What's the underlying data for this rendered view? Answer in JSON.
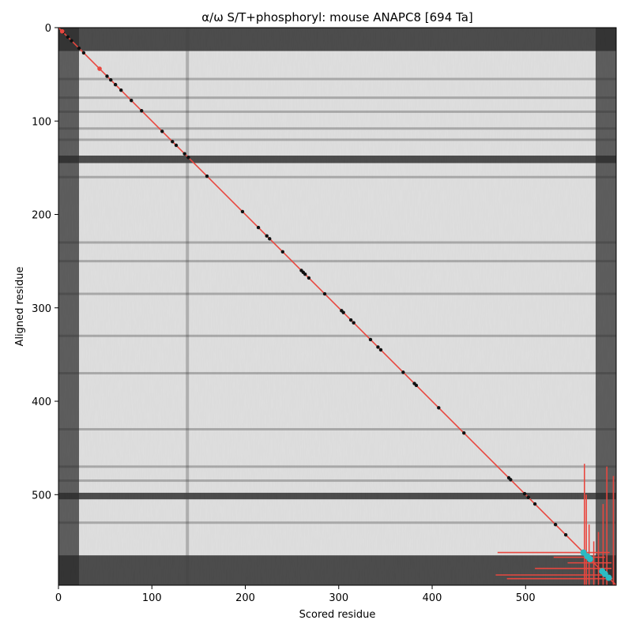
{
  "chart_data": {
    "type": "heatmap",
    "title": "α/ω S/T+phosphoryl: mouse ANAPC8 [694 Ta]",
    "xlabel": "Scored residue",
    "ylabel": "Aligned residue",
    "xlim": [
      0,
      597
    ],
    "ylim": [
      597,
      0
    ],
    "x_ticks": [
      0,
      100,
      200,
      300,
      400,
      500
    ],
    "y_ticks": [
      0,
      100,
      200,
      300,
      400,
      500
    ],
    "colormap": "greys (white = high, black = low)",
    "background": {
      "low_confidence_band_rows": [
        [
          0,
          25
        ],
        [
          137,
          145
        ],
        [
          498,
          505
        ],
        [
          565,
          597
        ]
      ],
      "low_confidence_band_cols": [
        [
          0,
          22
        ],
        [
          575,
          597
        ]
      ],
      "faint_dark_rows": [
        55,
        75,
        90,
        108,
        120,
        160,
        230,
        250,
        285,
        330,
        370,
        430,
        470,
        485,
        530
      ],
      "faint_dark_cols": [
        138
      ]
    },
    "diagonal": {
      "from": [
        0,
        0
      ],
      "to": [
        597,
        597
      ],
      "color": "#e8473f"
    },
    "points_black": [
      [
        5,
        5
      ],
      [
        10,
        10
      ],
      [
        14,
        14
      ],
      [
        22,
        22
      ],
      [
        27,
        27
      ],
      [
        44,
        44
      ],
      [
        52,
        52
      ],
      [
        56,
        56
      ],
      [
        61,
        61
      ],
      [
        67,
        67
      ],
      [
        78,
        78
      ],
      [
        89,
        89
      ],
      [
        111,
        111
      ],
      [
        122,
        122
      ],
      [
        126,
        126
      ],
      [
        135,
        135
      ],
      [
        139,
        139
      ],
      [
        159,
        159
      ],
      [
        197,
        197
      ],
      [
        214,
        214
      ],
      [
        223,
        223
      ],
      [
        226,
        226
      ],
      [
        240,
        240
      ],
      [
        260,
        260
      ],
      [
        262,
        262
      ],
      [
        264,
        264
      ],
      [
        268,
        268
      ],
      [
        285,
        285
      ],
      [
        303,
        303
      ],
      [
        305,
        305
      ],
      [
        313,
        313
      ],
      [
        316,
        316
      ],
      [
        334,
        334
      ],
      [
        342,
        342
      ],
      [
        345,
        345
      ],
      [
        369,
        369
      ],
      [
        381,
        381
      ],
      [
        383,
        383
      ],
      [
        407,
        407
      ],
      [
        434,
        434
      ],
      [
        482,
        482
      ],
      [
        484,
        484
      ],
      [
        499,
        499
      ],
      [
        503,
        503
      ],
      [
        510,
        510
      ],
      [
        532,
        532
      ],
      [
        543,
        543
      ]
    ],
    "points_red": [
      [
        4,
        4
      ],
      [
        44,
        44
      ]
    ],
    "points_cyan": [
      [
        562,
        562
      ],
      [
        566,
        566
      ],
      [
        569,
        569
      ],
      [
        582,
        582
      ],
      [
        585,
        585
      ],
      [
        589,
        589
      ]
    ],
    "error_bars": {
      "color": "#e8473f",
      "horizontal": [
        {
          "y": 562,
          "x": [
            470,
            590
          ]
        },
        {
          "y": 567,
          "x": [
            530,
            585
          ]
        },
        {
          "y": 573,
          "x": [
            545,
            592
          ]
        },
        {
          "y": 579,
          "x": [
            510,
            592
          ]
        },
        {
          "y": 586,
          "x": [
            468,
            588
          ]
        },
        {
          "y": 590,
          "x": [
            480,
            593
          ]
        }
      ],
      "vertical": [
        {
          "x": 563,
          "y": [
            467,
            597
          ]
        },
        {
          "x": 565,
          "y": [
            500,
            597
          ]
        },
        {
          "x": 568,
          "y": [
            532,
            597
          ]
        },
        {
          "x": 573,
          "y": [
            550,
            597
          ]
        },
        {
          "x": 578,
          "y": [
            540,
            597
          ]
        },
        {
          "x": 583,
          "y": [
            510,
            597
          ]
        },
        {
          "x": 587,
          "y": [
            470,
            597
          ]
        },
        {
          "x": 594,
          "y": [
            480,
            597
          ]
        }
      ]
    }
  }
}
